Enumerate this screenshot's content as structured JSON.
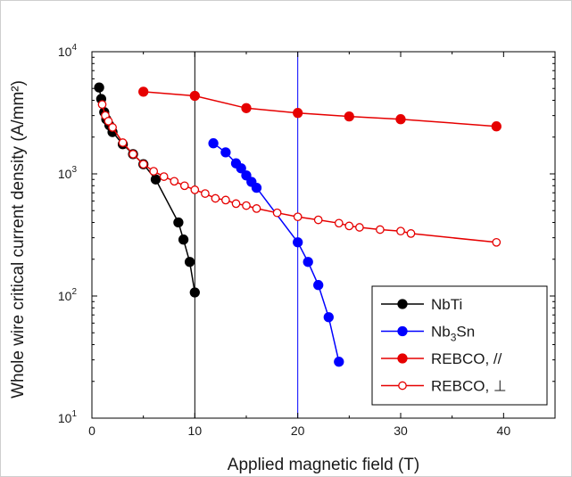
{
  "chart_data": {
    "type": "scatter",
    "xlabel": "Applied magnetic field (T)",
    "ylabel": "Whole wire critical current density (A/mm²)",
    "xlim": [
      0,
      45
    ],
    "ylim": [
      10,
      10000
    ],
    "yscale": "log",
    "x_ticks": [
      "0",
      "10",
      "20",
      "30",
      "40"
    ],
    "y_ticks": [
      {
        "value": 10,
        "base": "10",
        "exp": "1"
      },
      {
        "value": 100,
        "base": "10",
        "exp": "2"
      },
      {
        "value": 1000,
        "base": "10",
        "exp": "3"
      },
      {
        "value": 10000,
        "base": "10",
        "exp": "4"
      }
    ],
    "reference_lines": [
      {
        "x": 10,
        "color": "#000000"
      },
      {
        "x": 20,
        "color": "#0000ff"
      }
    ],
    "legend_position": "bottom-right",
    "series": [
      {
        "name": "NbTi",
        "label_parts": [
          "NbTi"
        ],
        "color": "#000000",
        "marker": "filled-circle",
        "x": [
          0.7,
          0.9,
          1.2,
          1.4,
          1.7,
          2.0,
          3.0,
          4.0,
          5.0,
          6.2,
          8.4,
          8.9,
          9.5,
          10.0
        ],
        "y": [
          5100,
          4100,
          3200,
          2800,
          2500,
          2200,
          1750,
          1450,
          1200,
          900,
          400,
          290,
          190,
          107
        ]
      },
      {
        "name": "Nb3Sn",
        "label_parts": [
          "Nb",
          "3",
          "Sn"
        ],
        "color": "#0000ff",
        "marker": "filled-circle",
        "x": [
          11.8,
          13.0,
          14.0,
          14.5,
          15.0,
          15.5,
          16.0,
          20.0,
          21.0,
          22.0,
          23.0,
          24.0
        ],
        "y": [
          1780,
          1500,
          1220,
          1110,
          970,
          860,
          770,
          275,
          190,
          123,
          67,
          29
        ]
      },
      {
        "name": "REBCO, //",
        "label_parts": [
          "REBCO, //"
        ],
        "color": "#e60000",
        "marker": "filled-circle",
        "x": [
          5.0,
          10.0,
          15.0,
          20.0,
          25.0,
          30.0,
          39.3
        ],
        "y": [
          4700,
          4350,
          3450,
          3150,
          2950,
          2800,
          2450
        ]
      },
      {
        "name": "REBCO, ⊥",
        "label_parts": [
          "REBCO, ⊥"
        ],
        "color": "#e60000",
        "marker": "open-circle",
        "x": [
          1.0,
          1.3,
          1.6,
          2.0,
          3.0,
          4.0,
          5.0,
          6.0,
          7.0,
          8.0,
          9.0,
          10.0,
          11.0,
          12.0,
          13.0,
          14.0,
          15.0,
          16.0,
          18.0,
          20.0,
          22.0,
          24.0,
          25.0,
          26.0,
          28.0,
          30.0,
          31.0,
          39.3
        ],
        "y": [
          3700,
          3000,
          2700,
          2400,
          1800,
          1450,
          1200,
          1050,
          950,
          870,
          800,
          740,
          690,
          630,
          610,
          570,
          550,
          520,
          480,
          445,
          420,
          395,
          375,
          365,
          350,
          340,
          325,
          275
        ]
      }
    ]
  }
}
